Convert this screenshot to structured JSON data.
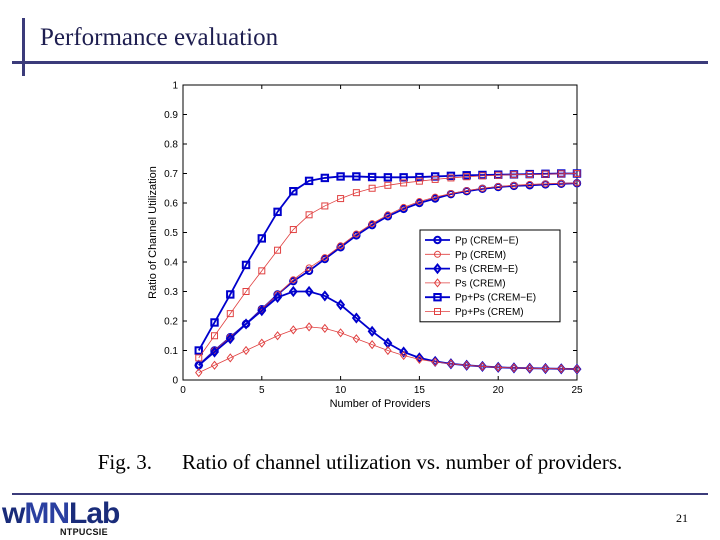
{
  "slide": {
    "title": "Performance evaluation",
    "caption_label": "Fig. 3.",
    "caption_text": "Ratio of channel utilization vs. number of providers.",
    "page_number": "21",
    "logo": {
      "text_w": "w",
      "text_mn": "MN",
      "text_lab": "Lab",
      "subtext": "NTPUCSIE"
    }
  },
  "chart_data": {
    "type": "line",
    "xlabel": "Number of Providers",
    "ylabel": "Ratio of Channel Utilization",
    "xlim": [
      0,
      25
    ],
    "ylim": [
      0,
      1
    ],
    "xticks": [
      0,
      5,
      10,
      15,
      20,
      25
    ],
    "yticks": [
      0,
      0.1,
      0.2,
      0.3,
      0.4,
      0.5,
      0.6,
      0.7,
      0.8,
      0.9,
      1
    ],
    "grid": false,
    "legend_position": "right",
    "x": [
      1,
      2,
      3,
      4,
      5,
      6,
      7,
      8,
      9,
      10,
      11,
      12,
      13,
      14,
      15,
      16,
      17,
      18,
      19,
      20,
      21,
      22,
      23,
      24,
      25
    ],
    "series": [
      {
        "name": "Pp (CREM−E)",
        "color": "#0000cc",
        "marker": "circle",
        "style": "heavy",
        "values": [
          0.05,
          0.1,
          0.145,
          0.19,
          0.24,
          0.29,
          0.335,
          0.37,
          0.41,
          0.45,
          0.49,
          0.525,
          0.555,
          0.58,
          0.6,
          0.615,
          0.63,
          0.64,
          0.648,
          0.654,
          0.658,
          0.66,
          0.663,
          0.665,
          0.667
        ]
      },
      {
        "name": "Pp (CREM)",
        "color": "#e04040",
        "marker": "circle",
        "style": "light",
        "values": [
          0.05,
          0.1,
          0.145,
          0.19,
          0.24,
          0.29,
          0.34,
          0.38,
          0.415,
          0.455,
          0.495,
          0.53,
          0.56,
          0.585,
          0.605,
          0.62,
          0.632,
          0.642,
          0.65,
          0.656,
          0.66,
          0.663,
          0.665,
          0.667,
          0.668
        ]
      },
      {
        "name": "Ps (CREM−E)",
        "color": "#0000cc",
        "marker": "diamond",
        "style": "heavy",
        "values": [
          0.05,
          0.095,
          0.14,
          0.19,
          0.235,
          0.28,
          0.3,
          0.3,
          0.285,
          0.255,
          0.21,
          0.165,
          0.125,
          0.095,
          0.075,
          0.063,
          0.055,
          0.05,
          0.046,
          0.043,
          0.041,
          0.04,
          0.039,
          0.038,
          0.037
        ]
      },
      {
        "name": "Ps (CREM)",
        "color": "#e04040",
        "marker": "diamond",
        "style": "light",
        "values": [
          0.025,
          0.05,
          0.075,
          0.1,
          0.125,
          0.15,
          0.17,
          0.18,
          0.175,
          0.16,
          0.14,
          0.12,
          0.1,
          0.083,
          0.07,
          0.061,
          0.055,
          0.05,
          0.046,
          0.043,
          0.041,
          0.04,
          0.039,
          0.038,
          0.037
        ]
      },
      {
        "name": "Pp+Ps (CREM−E)",
        "color": "#0000cc",
        "marker": "square",
        "style": "heavy",
        "values": [
          0.1,
          0.195,
          0.29,
          0.39,
          0.48,
          0.57,
          0.64,
          0.675,
          0.685,
          0.69,
          0.69,
          0.688,
          0.687,
          0.687,
          0.688,
          0.69,
          0.692,
          0.694,
          0.695,
          0.696,
          0.697,
          0.698,
          0.699,
          0.7,
          0.7
        ]
      },
      {
        "name": "Pp+Ps (CREM)",
        "color": "#e04040",
        "marker": "square",
        "style": "light",
        "values": [
          0.075,
          0.15,
          0.225,
          0.3,
          0.37,
          0.44,
          0.51,
          0.56,
          0.59,
          0.615,
          0.635,
          0.65,
          0.66,
          0.668,
          0.674,
          0.68,
          0.685,
          0.689,
          0.692,
          0.694,
          0.696,
          0.697,
          0.698,
          0.699,
          0.7
        ]
      }
    ]
  }
}
